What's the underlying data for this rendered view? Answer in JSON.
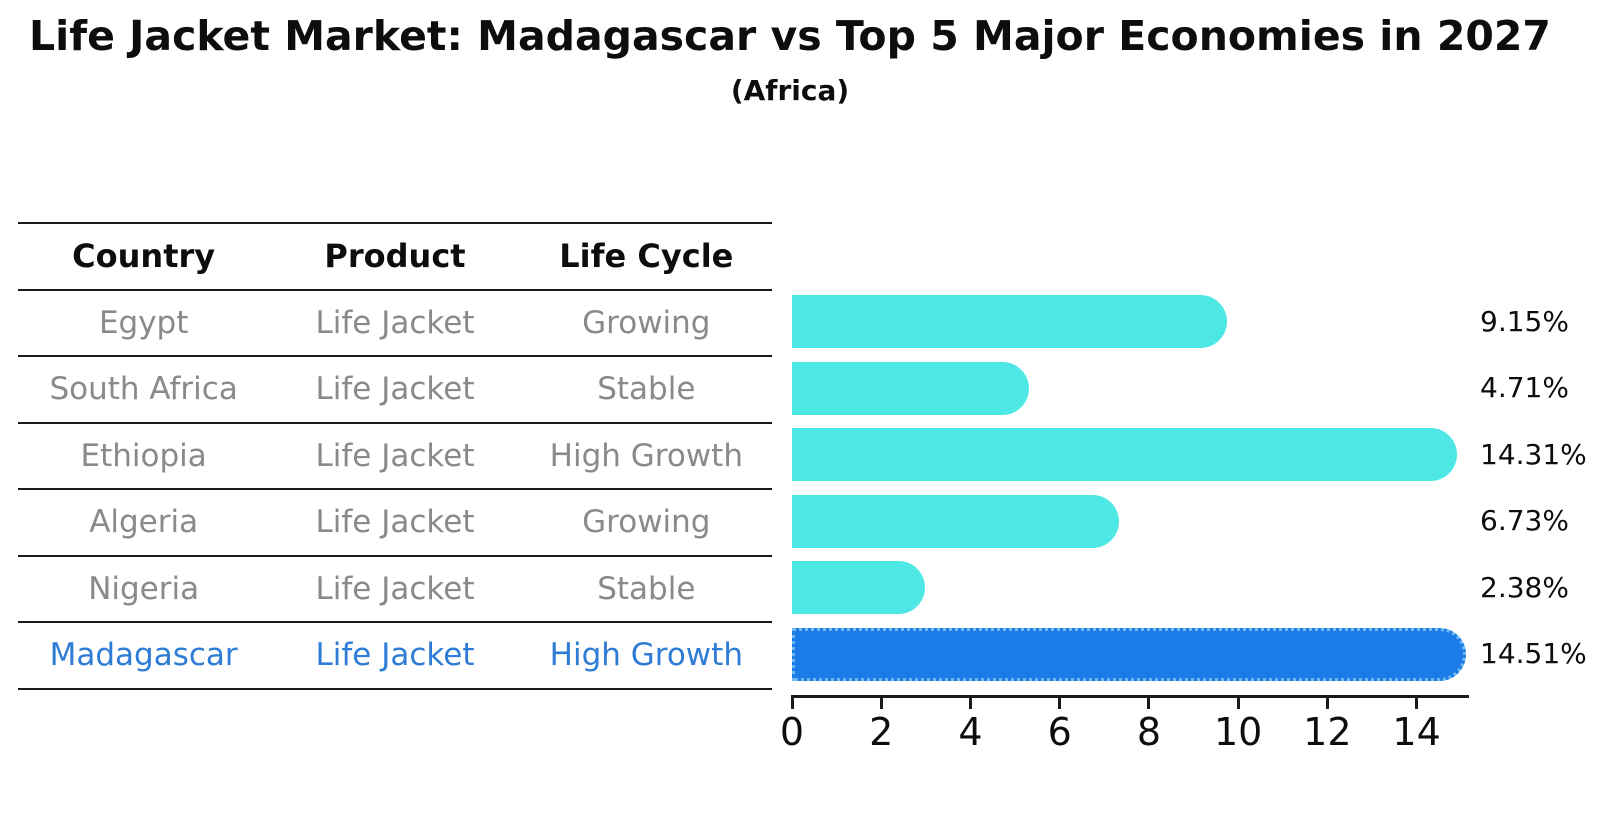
{
  "chart_data": {
    "type": "bar",
    "orientation": "horizontal",
    "title": "Life Jacket Market: Madagascar vs Top 5 Major Economies in 2027",
    "subtitle": "(Africa)",
    "categories": [
      "Egypt",
      "South Africa",
      "Ethiopia",
      "Algeria",
      "Nigeria",
      "Madagascar"
    ],
    "values": [
      9.15,
      4.71,
      14.31,
      6.73,
      2.38,
      14.51
    ],
    "value_labels": [
      "9.15%",
      "4.71%",
      "14.31%",
      "6.73%",
      "2.38%",
      "14.51%"
    ],
    "x_ticks": [
      0,
      2,
      4,
      6,
      8,
      10,
      12,
      14
    ],
    "xlim": [
      0,
      15.13
    ],
    "highlight_index": 5,
    "xlabel": "",
    "ylabel": "",
    "grid": false,
    "legend": false
  },
  "table": {
    "headers": [
      "Country",
      "Product",
      "Life Cycle"
    ],
    "rows": [
      {
        "country": "Egypt",
        "product": "Life Jacket",
        "life_cycle": "Growing"
      },
      {
        "country": "South Africa",
        "product": "Life Jacket",
        "life_cycle": "Stable"
      },
      {
        "country": "Ethiopia",
        "product": "Life Jacket",
        "life_cycle": "High Growth"
      },
      {
        "country": "Algeria",
        "product": "Life Jacket",
        "life_cycle": "Growing"
      },
      {
        "country": "Nigeria",
        "product": "Life Jacket",
        "life_cycle": "Stable"
      },
      {
        "country": "Madagascar",
        "product": "Life Jacket",
        "life_cycle": "High Growth"
      }
    ]
  },
  "colors": {
    "bar": "#4DE8E4",
    "highlight_bar": "#1B7CE8",
    "highlight_border": "#6FB9F0",
    "highlight_text": "#2E7CD6",
    "row_text": "#8A8A8A"
  }
}
